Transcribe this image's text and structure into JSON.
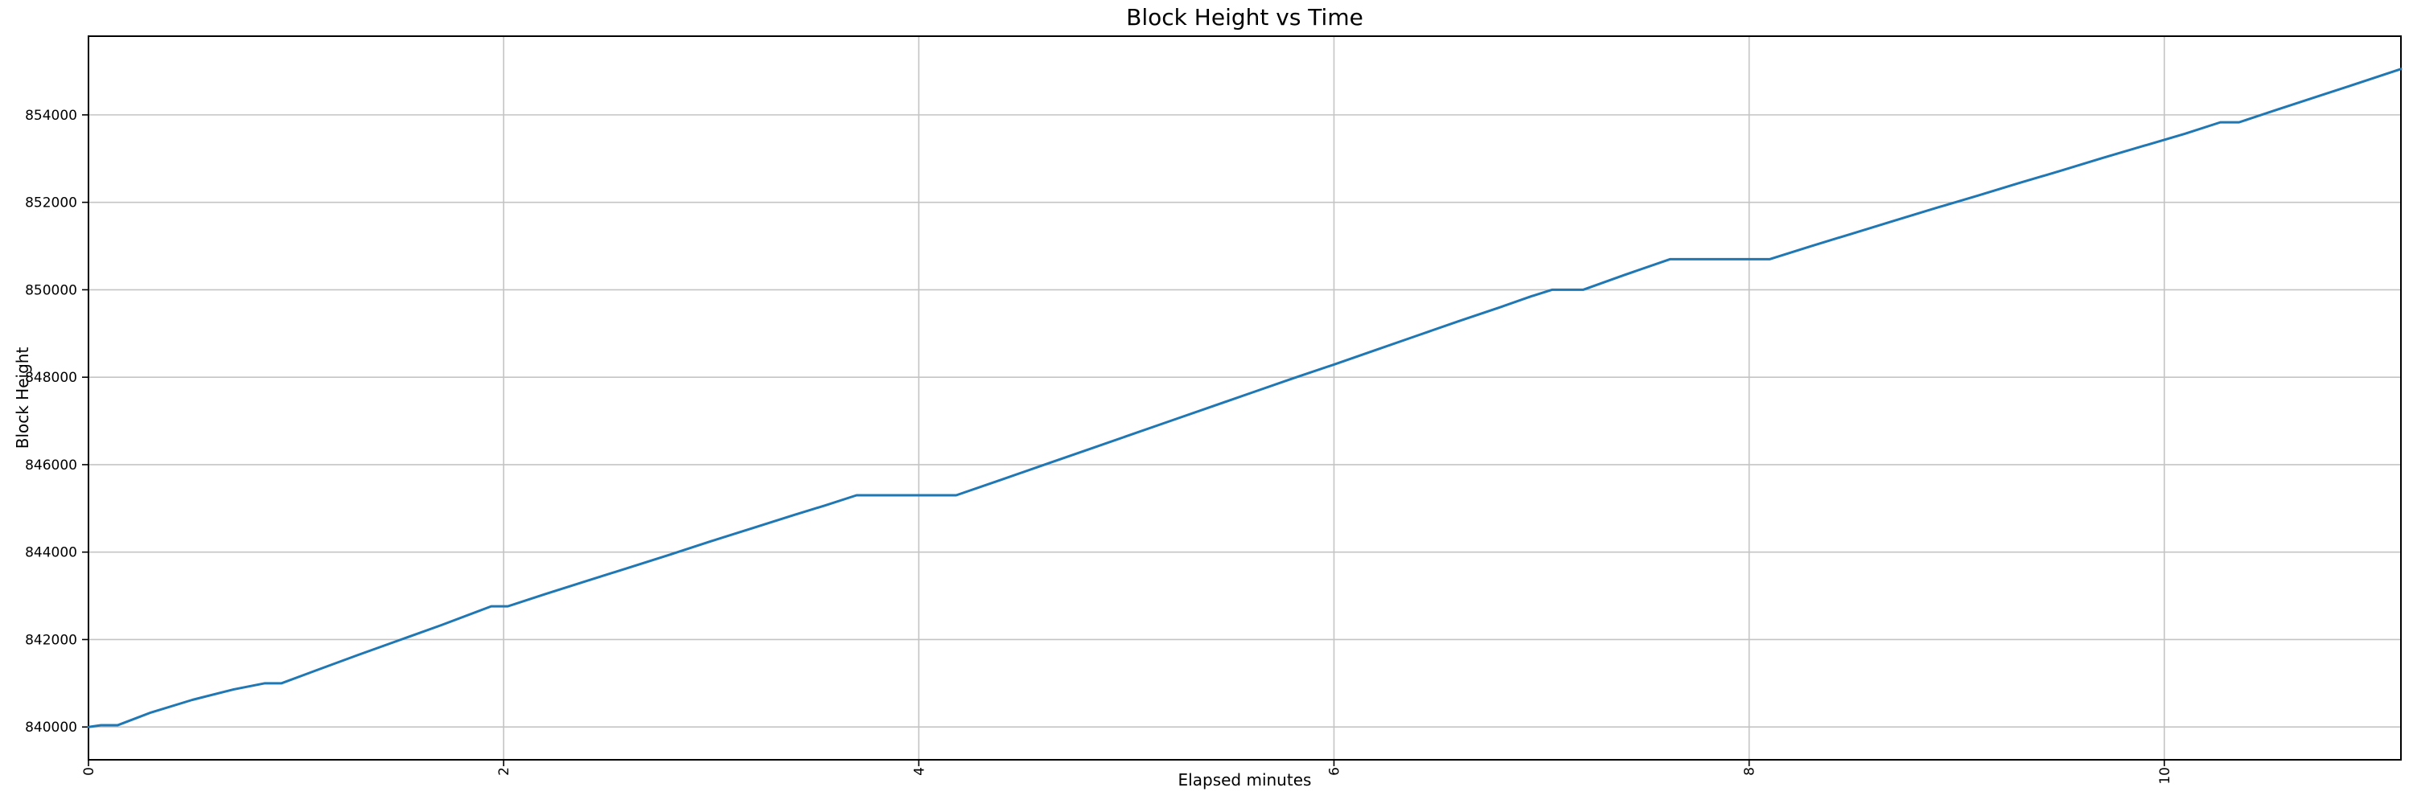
{
  "figure": {
    "background": "#ffffff"
  },
  "chart_data": {
    "type": "line",
    "title": "Block Height vs Time",
    "xlabel": "Elapsed minutes",
    "ylabel": "Block Height",
    "x": [
      0,
      0.06,
      0.14,
      0.3,
      0.5,
      0.7,
      0.85,
      0.93,
      1.1,
      1.3,
      1.5,
      1.7,
      1.94,
      2.02,
      2.2,
      2.4,
      2.6,
      2.8,
      3.0,
      3.2,
      3.4,
      3.55,
      3.7,
      4.18,
      4.4,
      4.6,
      4.8,
      5.0,
      5.2,
      5.4,
      5.6,
      5.8,
      6.0,
      6.2,
      6.4,
      6.6,
      6.8,
      6.95,
      7.05,
      7.2,
      7.4,
      7.62,
      8.1,
      8.3,
      8.5,
      8.7,
      8.9,
      9.1,
      9.3,
      9.5,
      9.7,
      9.9,
      10.1,
      10.27,
      10.36,
      10.55,
      10.75,
      10.95,
      11.14
    ],
    "y": [
      840000,
      840040,
      840040,
      840330,
      840620,
      840860,
      841000,
      841000,
      841300,
      841650,
      841990,
      842330,
      842760,
      842760,
      843040,
      843340,
      843640,
      843940,
      844250,
      844550,
      844850,
      845070,
      845300,
      845300,
      845660,
      845990,
      846320,
      846650,
      846980,
      847310,
      847640,
      847970,
      848290,
      848620,
      848950,
      849280,
      849600,
      849850,
      850000,
      850000,
      850340,
      850700,
      850700,
      851000,
      851290,
      851580,
      851870,
      852150,
      852440,
      852720,
      853010,
      853290,
      853570,
      853830,
      853830,
      854130,
      854440,
      854750,
      855050
    ],
    "xlim": [
      0,
      11.14
    ],
    "ylim": [
      839250,
      855800
    ],
    "xticks": [
      0,
      2,
      4,
      6,
      8,
      10
    ],
    "yticks": [
      840000,
      842000,
      844000,
      846000,
      848000,
      850000,
      852000,
      854000
    ],
    "xtick_rotation": 90,
    "grid": true,
    "legend_position": "none",
    "line_color": "#1f77b4",
    "grid_color": "#c4c4c4",
    "spine_color": "#000000"
  }
}
